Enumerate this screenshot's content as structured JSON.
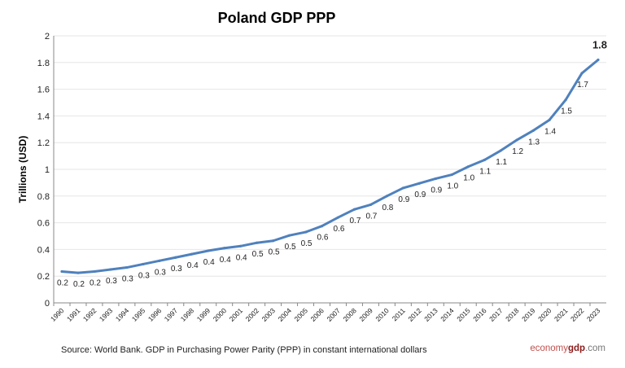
{
  "chart_data": {
    "type": "line",
    "title": "Poland GDP PPP",
    "ylabel": "Trillions (USD)",
    "xlabel": "",
    "ylim": [
      0,
      2
    ],
    "yticks": [
      "0",
      "0.2",
      "0.4",
      "0.6",
      "0.8",
      "1",
      "1.2",
      "1.4",
      "1.6",
      "1.8",
      "2"
    ],
    "grid": true,
    "line_color": "#4f81bd",
    "x": [
      "1990",
      "1991",
      "1992",
      "1993",
      "1994",
      "1995",
      "1996",
      "1997",
      "1998",
      "1999",
      "2000",
      "2001",
      "2002",
      "2003",
      "2004",
      "2005",
      "2006",
      "2007",
      "2008",
      "2009",
      "2010",
      "2011",
      "2012",
      "2013",
      "2014",
      "2015",
      "2016",
      "2017",
      "2018",
      "2019",
      "2020",
      "2021",
      "2022",
      "2023"
    ],
    "values": [
      0.235,
      0.225,
      0.235,
      0.25,
      0.265,
      0.29,
      0.315,
      0.34,
      0.365,
      0.39,
      0.41,
      0.425,
      0.45,
      0.465,
      0.505,
      0.53,
      0.575,
      0.64,
      0.7,
      0.735,
      0.8,
      0.86,
      0.895,
      0.93,
      0.96,
      1.02,
      1.07,
      1.14,
      1.22,
      1.29,
      1.37,
      1.52,
      1.72,
      1.82
    ],
    "data_labels": [
      "0.2",
      "0.2",
      "0.2",
      "0.3",
      "0.3",
      "0.3",
      "0.3",
      "0.3",
      "0.4",
      "0.4",
      "0.4",
      "0.4",
      "0.5",
      "0.5",
      "0.5",
      "0.5",
      "0.6",
      "0.6",
      "0.7",
      "0.7",
      "0.8",
      "0.9",
      "0.9",
      "0.9",
      "1.0",
      "1.0",
      "1.1",
      "1.1",
      "1.2",
      "1.3",
      "1.4",
      "1.5",
      "1.7",
      "1.8"
    ]
  },
  "source": "Source:  World Bank.  GDP  in  Purchasing Power Parity (PPP)  in constant international dollars",
  "watermark": {
    "part1": "economy",
    "part2": "gdp",
    "part3": ".com"
  }
}
